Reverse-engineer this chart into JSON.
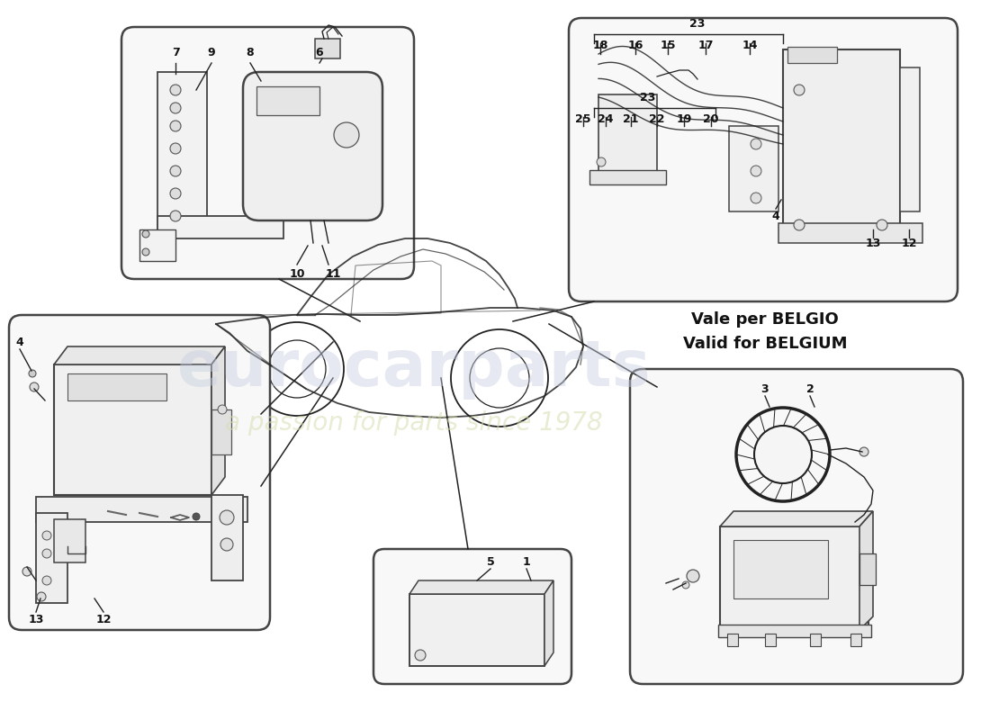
{
  "bg_color": "#ffffff",
  "fig_w": 11.0,
  "fig_h": 8.0,
  "dpi": 100,
  "watermark_color": "#c8cfe0",
  "watermark_alpha": 0.45,
  "watermark_text": "eurocarparts",
  "watermark_subtext": "a passion for parts since 1978",
  "watermark_subtext_color": "#d4ddb0",
  "belgium_text_1": "Vale per BELGIO",
  "belgium_text_2": "Valid for BELGIUM",
  "line_color": "#222222",
  "box_edge_color": "#444444",
  "fill_light": "#f8f8f8",
  "fill_mid": "#eeeeee"
}
